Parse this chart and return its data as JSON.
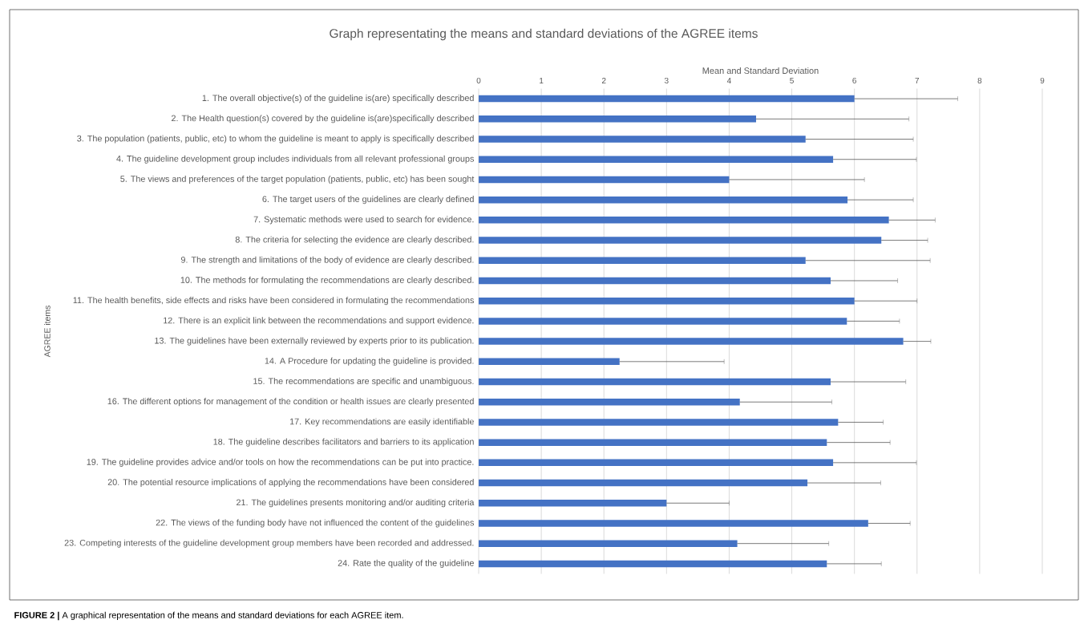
{
  "chart_data": {
    "type": "bar",
    "orientation": "horizontal",
    "title": "Graph representating the means and standard deviations of the AGREE items",
    "xlabel": "Mean and Standard Deviation",
    "ylabel": "AGREE items",
    "categories": [
      "1. The overall objective(s) of the guideline is(are) specifically described",
      "2. The Health question(s) covered by the guideline is(are)specifically described",
      "3. The population (patients, public, etc) to whom the guideline is meant to apply is specifically described",
      "4. The guideline development group includes individuals from all relevant professional groups",
      "5. The views and preferences of the target population (patients, public, etc) has been sought",
      "6. The target users of the guidelines are clearly defined",
      "7. Systematic methods were used to search for evidence.",
      "8. The criteria for selecting the evidence are clearly described.",
      "9. The strength and limitations of the body of evidence are clearly described.",
      "10. The methods for formulating the recommendations are clearly described.",
      "11. The health benefits, side effects and risks have been considered in formulating the recommendations",
      "12. There is an explicit link between the recommendations and support evidence.",
      "13. The guidelines have been externally reviewed by experts prior to its publication.",
      "14. A Procedure for updating the guideline is provided.",
      "15. The recommendations are specific and unambiguous.",
      "16. The different options for management of the condition or health issues are clearly presented",
      "17. Key recommendations are easily identifiable",
      "18. The guideline describes facilitators and barriers to its application",
      "19. The guideline provides advice and/or tools on how the recommendations can be put into practice.",
      "20. The potential resource implications of applying the recommendations have been considered",
      "21. The guidelines presents monitoring and/or auditing criteria",
      "22. The views of the funding body have not influenced the content of the guidelines",
      "23. Competing interests of the guideline development group members have been recorded and addressed.",
      "24. Rate the quality of the guideline"
    ],
    "values": [
      6.0,
      4.43,
      5.22,
      5.66,
      4.0,
      5.89,
      6.55,
      6.43,
      5.22,
      5.62,
      6.0,
      5.88,
      6.78,
      2.25,
      5.62,
      4.17,
      5.74,
      5.56,
      5.66,
      5.25,
      3.0,
      6.22,
      4.13,
      5.56
    ],
    "errors": [
      [
        6.0,
        7.65
      ],
      [
        4.43,
        6.87
      ],
      [
        5.22,
        6.94
      ],
      [
        5.66,
        6.99
      ],
      [
        4.0,
        6.16
      ],
      [
        5.89,
        6.94
      ],
      [
        6.55,
        7.29
      ],
      [
        6.43,
        7.17
      ],
      [
        5.22,
        7.21
      ],
      [
        5.62,
        6.69
      ],
      [
        6.0,
        7.0
      ],
      [
        5.88,
        6.72
      ],
      [
        6.78,
        7.22
      ],
      [
        2.25,
        3.92
      ],
      [
        5.62,
        6.82
      ],
      [
        4.17,
        5.64
      ],
      [
        5.74,
        6.46
      ],
      [
        5.56,
        6.57
      ],
      [
        5.66,
        6.99
      ],
      [
        5.25,
        6.42
      ],
      [
        3.0,
        4.0
      ],
      [
        6.22,
        6.89
      ],
      [
        4.13,
        5.59
      ],
      [
        5.56,
        6.43
      ]
    ],
    "color": "#4472c4",
    "xlim": [
      0,
      9
    ],
    "xticks": [
      0,
      1,
      2,
      3,
      4,
      5,
      6,
      7,
      8,
      9
    ],
    "grid": "x",
    "annotations": [
      "**FIGURE 2 |** A graphical representation of the means and standard deviations for each AGREE item."
    ]
  }
}
